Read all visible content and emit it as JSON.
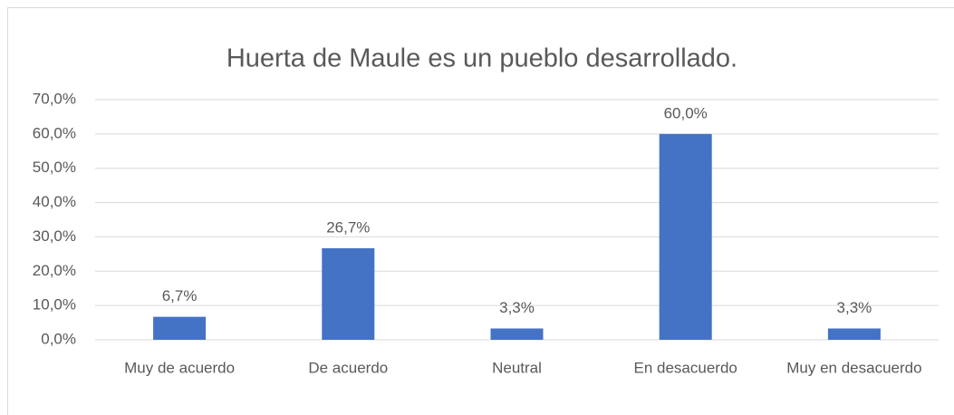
{
  "chart_data": {
    "type": "bar",
    "title": "Huerta de Maule es un pueblo desarrollado.",
    "categories": [
      "Muy de acuerdo",
      "De acuerdo",
      "Neutral",
      "En desacuerdo",
      "Muy en desacuerdo"
    ],
    "values": [
      6.7,
      26.7,
      3.3,
      60.0,
      3.3
    ],
    "value_labels": [
      "6,7%",
      "26,7%",
      "3,3%",
      "60,0%",
      "3,3%"
    ],
    "color": "#4472c4",
    "ylim": [
      0,
      70
    ],
    "yticks": [
      {
        "value": 0,
        "label": "0,0%"
      },
      {
        "value": 10,
        "label": "10,0%"
      },
      {
        "value": 20,
        "label": "20,0%"
      },
      {
        "value": 30,
        "label": "30,0%"
      },
      {
        "value": 40,
        "label": "40,0%"
      },
      {
        "value": 50,
        "label": "50,0%"
      },
      {
        "value": 60,
        "label": "60,0%"
      },
      {
        "value": 70,
        "label": "70,0%"
      }
    ],
    "grid": true
  }
}
